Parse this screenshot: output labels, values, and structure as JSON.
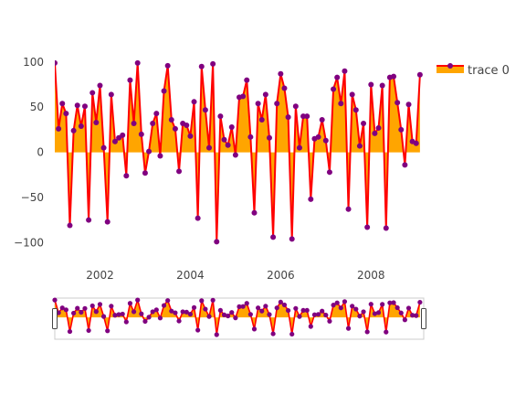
{
  "chart_data": {
    "type": "area",
    "title": "",
    "xlabel": "",
    "ylabel": "",
    "x_start": "2001-01",
    "x_frequency": "monthly",
    "xlim": [
      "2001-01",
      "2009-03"
    ],
    "ylim": [
      -125,
      110
    ],
    "x_ticks": [
      "2002",
      "2004",
      "2006",
      "2008"
    ],
    "y_ticks": [
      100,
      50,
      0,
      -50,
      -100
    ],
    "y_tick_labels": [
      "100",
      "50",
      "0",
      "−50",
      "−100"
    ],
    "grid": false,
    "legend_position": "top-right",
    "range_slider": true,
    "series": [
      {
        "name": "trace 0",
        "line_color": "#ff0000",
        "marker_color": "#800080",
        "fill_color": "#ffa500",
        "fill": "tozeroy",
        "values": [
          99,
          26,
          54,
          43,
          -81,
          24,
          52,
          29,
          51,
          -75,
          66,
          33,
          74,
          5,
          -77,
          64,
          12,
          16,
          19,
          -26,
          80,
          32,
          99,
          20,
          -23,
          1,
          32,
          43,
          -4,
          68,
          96,
          36,
          26,
          -21,
          32,
          30,
          18,
          56,
          -73,
          95,
          47,
          5,
          98,
          -99,
          40,
          14,
          8,
          28,
          -3,
          61,
          62,
          80,
          17,
          -67,
          54,
          36,
          64,
          16,
          -94,
          54,
          87,
          71,
          39,
          -96,
          51,
          5,
          40,
          40,
          -52,
          15,
          17,
          36,
          13,
          -22,
          70,
          83,
          54,
          90,
          -63,
          64,
          47,
          7,
          32,
          -83,
          75,
          21,
          27,
          74,
          -84,
          83,
          84,
          55,
          25,
          -14,
          53,
          12,
          10,
          86
        ]
      }
    ]
  }
}
